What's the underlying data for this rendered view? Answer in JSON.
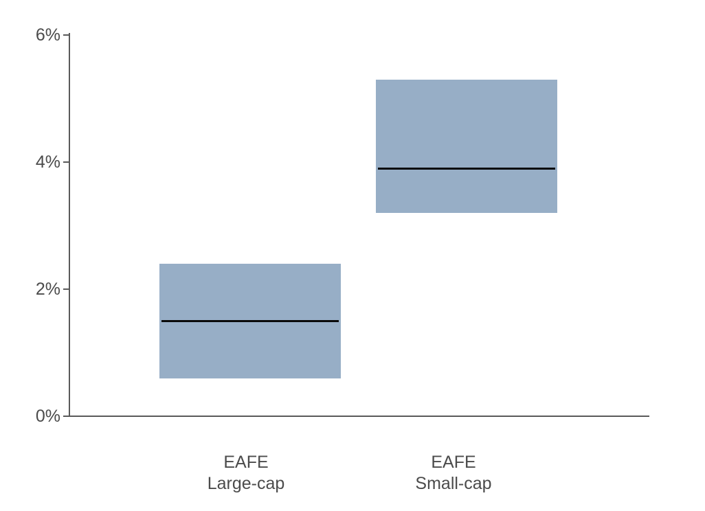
{
  "colors": {
    "background": "#ffffff",
    "bar_fill": "#97aec6",
    "median_line": "#0a0a0a",
    "axis": "#595959",
    "text": "#4b4b4b"
  },
  "chart_data": {
    "type": "bar",
    "subtype": "floating-range-bar-with-midline",
    "title": "",
    "xlabel": "",
    "ylabel": "",
    "unit": "%",
    "grid": false,
    "legend": false,
    "categories": [
      "EAFE Large-cap",
      "EAFE Small-cap"
    ],
    "bars": [
      {
        "label_lines": [
          "EAFE",
          "Large-cap"
        ],
        "low": 0.6,
        "high": 2.4,
        "mid": 1.5
      },
      {
        "label_lines": [
          "EAFE",
          "Small-cap"
        ],
        "low": 3.2,
        "high": 5.3,
        "mid": 3.9
      }
    ],
    "series": [
      {
        "name": "range_low",
        "values": [
          0.6,
          3.2
        ]
      },
      {
        "name": "range_high",
        "values": [
          2.4,
          5.3
        ]
      },
      {
        "name": "midline",
        "values": [
          1.5,
          3.9
        ]
      }
    ],
    "y_axis": {
      "min": 0,
      "max": 6,
      "tick_values": [
        0,
        2,
        4,
        6
      ],
      "tick_labels": [
        "0%",
        "2%",
        "4%",
        "6%"
      ]
    }
  }
}
